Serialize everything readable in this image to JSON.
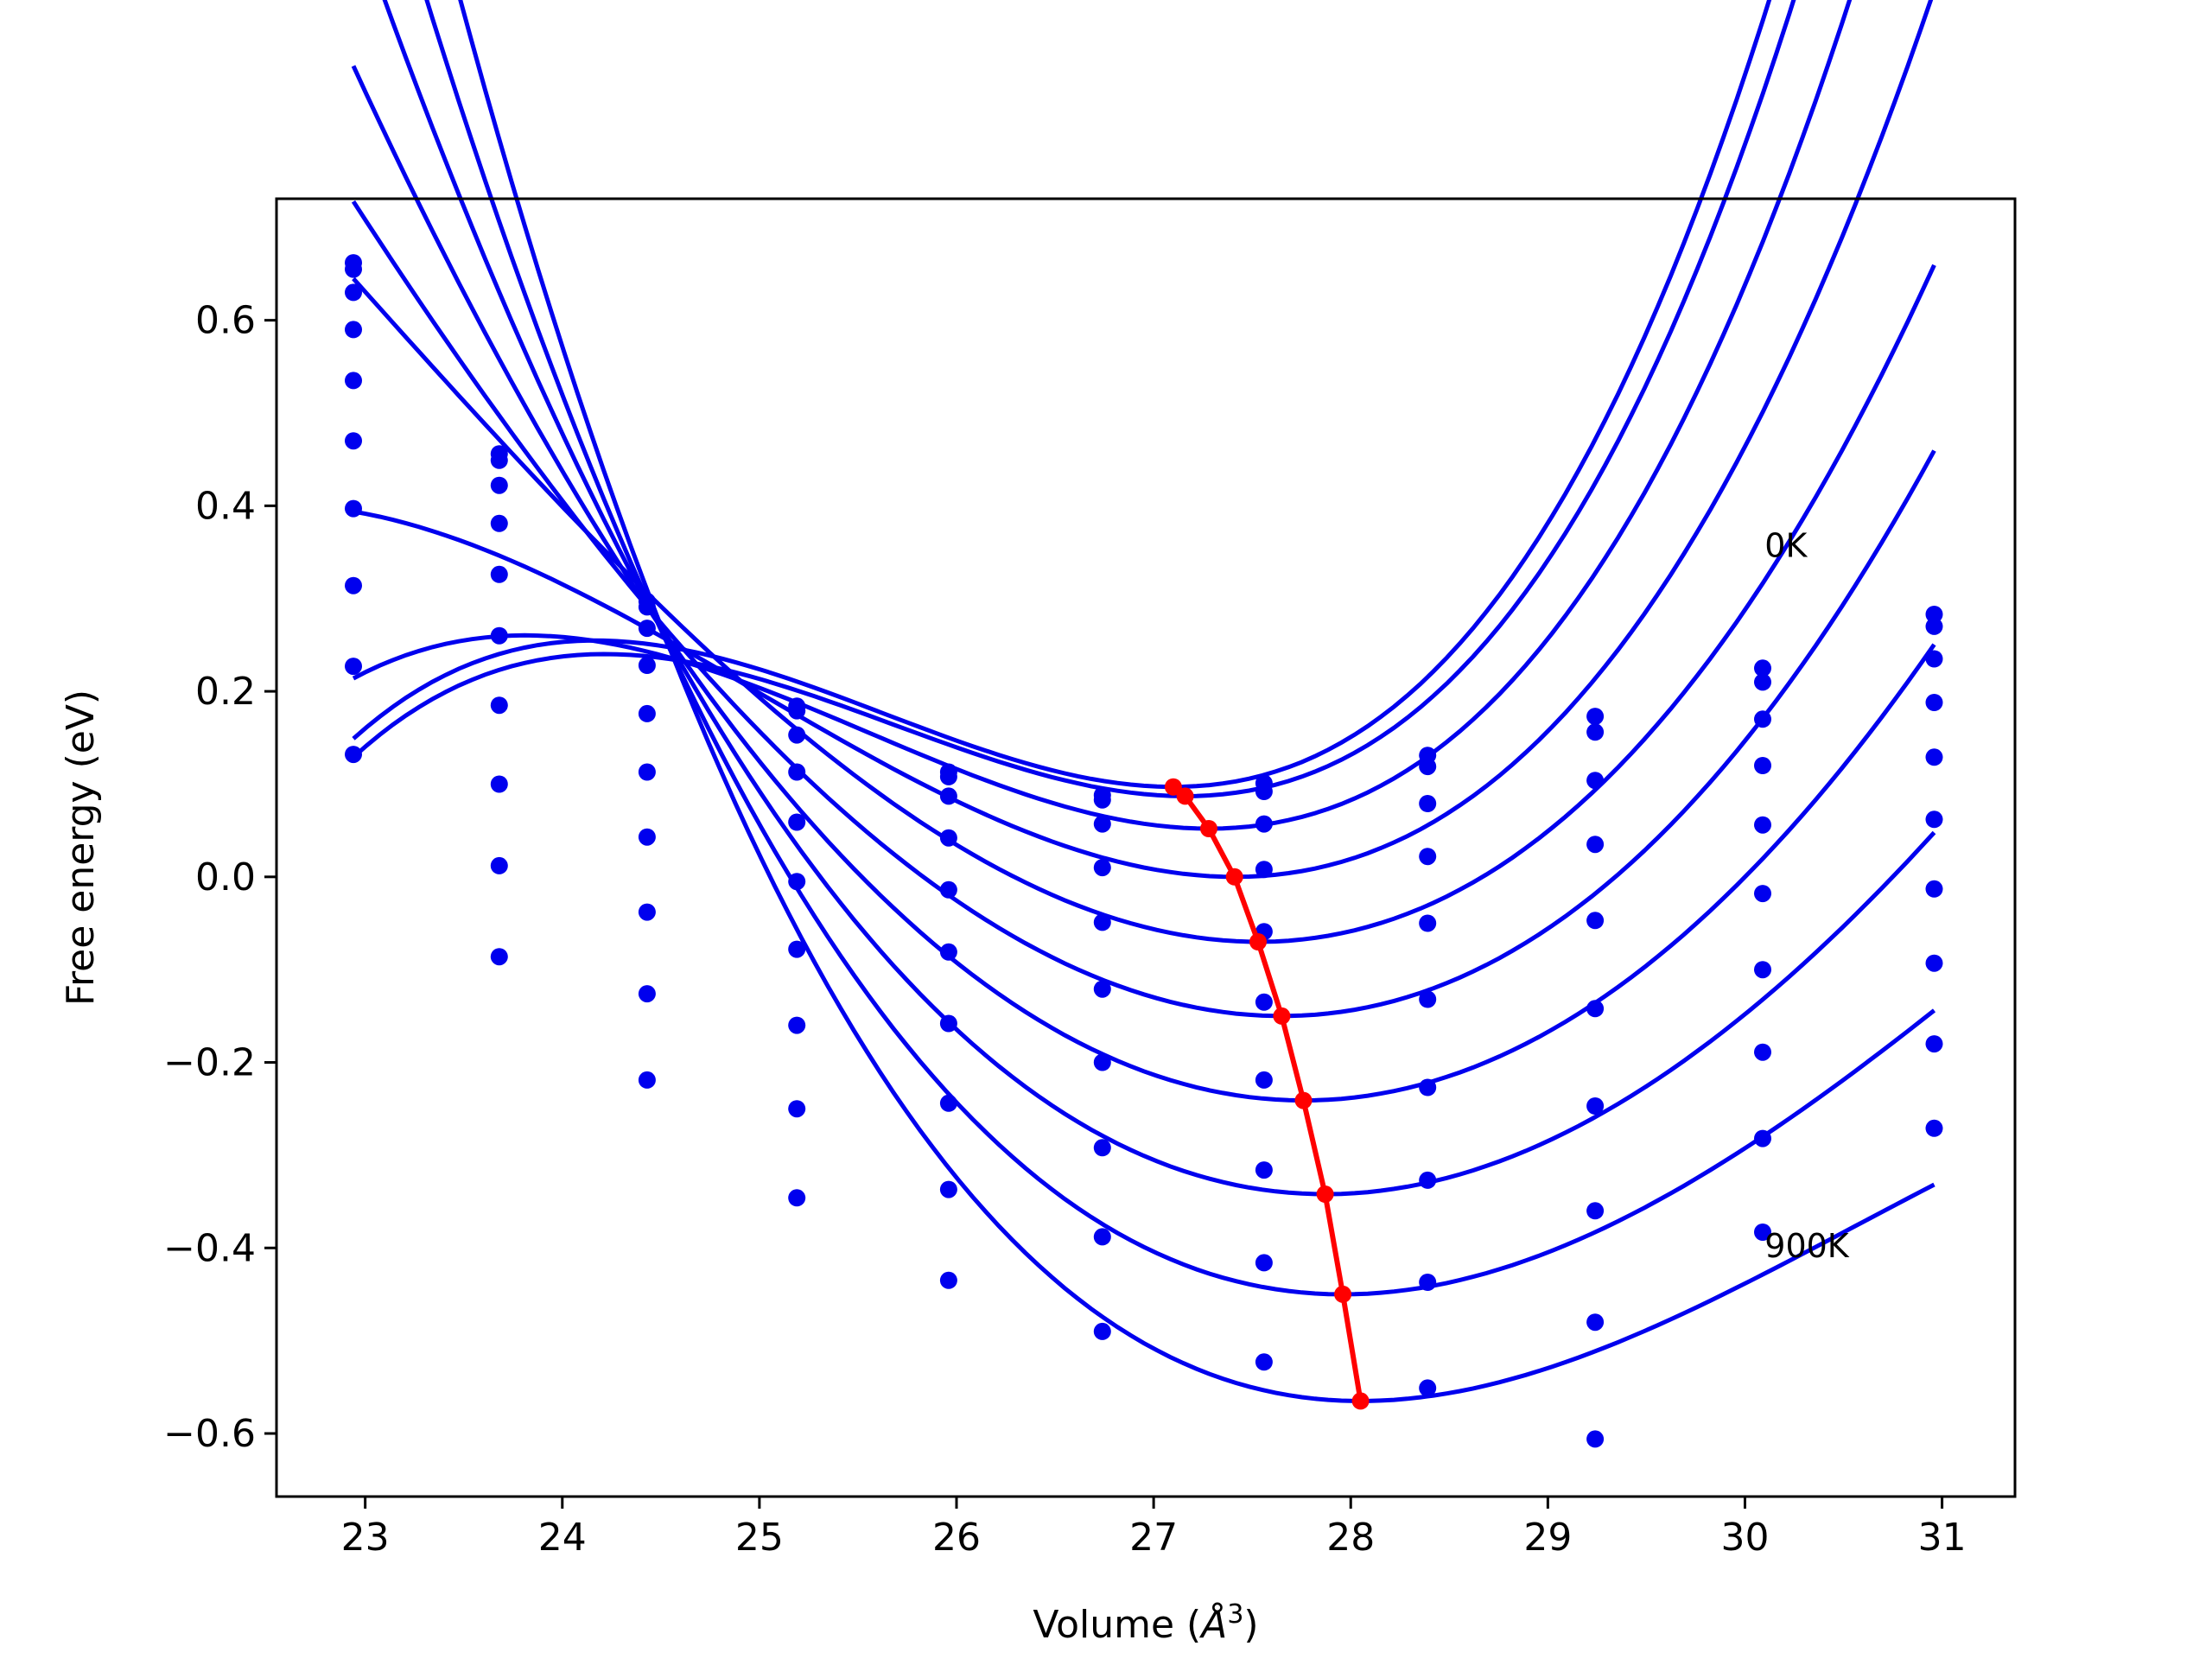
{
  "chart_data": {
    "type": "line",
    "title": "",
    "xlabel_main": "Volume (",
    "xlabel_symbol": "Å",
    "xlabel_exp": "3",
    "xlabel_close": ")",
    "xlabel": "Volume (Å^3)",
    "ylabel": "Free energy (eV)",
    "xlim": [
      22.55,
      31.37
    ],
    "ylim": [
      -0.668,
      0.731
    ],
    "xticks": [
      23,
      24,
      25,
      26,
      27,
      28,
      29,
      30,
      31
    ],
    "xtick_labels": [
      "23",
      "24",
      "25",
      "26",
      "27",
      "28",
      "29",
      "30",
      "31"
    ],
    "yticks": [
      -0.6,
      -0.4,
      -0.2,
      0.0,
      0.2,
      0.4,
      0.6
    ],
    "ytick_labels": [
      "−0.6",
      "−0.4",
      "−0.2",
      "0.0",
      "0.2",
      "0.4",
      "0.6"
    ],
    "grid": false,
    "legend": "none",
    "colors": {
      "fit": "#0000ee",
      "points": "#0000ee",
      "minimum": "#ff0000",
      "frame": "#000000"
    },
    "annotations": [
      {
        "text": "0K",
        "x": 30.1,
        "y": 0.345
      },
      {
        "text": "900K",
        "x": 30.1,
        "y": -0.41
      }
    ],
    "volumes": [
      22.94,
      23.68,
      24.43,
      25.19,
      25.96,
      26.74,
      27.56,
      28.39,
      29.24,
      30.09,
      30.96
    ],
    "series": [
      {
        "points": [
          0.662,
          0.456,
          0.297,
          0.184,
          0.113,
          0.088,
          0.101,
          0.131,
          0.173,
          0.225,
          0.283
        ],
        "fit": {
          "v0": 27.1,
          "e0": 0.097,
          "a": 0.055,
          "b": 0.0125
        }
      },
      {
        "points": [
          0.655,
          0.449,
          0.291,
          0.179,
          0.108,
          0.083,
          0.092,
          0.119,
          0.156,
          0.21,
          0.27
        ],
        "fit": {
          "v0": 27.16,
          "e0": 0.087,
          "a": 0.053,
          "b": 0.012
        }
      },
      {
        "points": [
          0.63,
          0.422,
          0.268,
          0.153,
          0.087,
          0.057,
          0.057,
          0.079,
          0.104,
          0.17,
          0.235
        ],
        "fit": {
          "v0": 27.28,
          "e0": 0.052,
          "a": 0.052,
          "b": 0.01
        }
      },
      {
        "points": [
          0.59,
          0.381,
          0.228,
          0.113,
          0.042,
          0.01,
          0.008,
          0.022,
          0.035,
          0.12,
          0.188
        ],
        "fit": {
          "v0": 27.41,
          "e0": 0.0,
          "a": 0.051,
          "b": 0.007
        }
      },
      {
        "points": [
          0.535,
          0.326,
          0.176,
          0.059,
          -0.014,
          -0.049,
          -0.059,
          -0.05,
          -0.047,
          0.056,
          0.129
        ],
        "fit": {
          "v0": 27.53,
          "e0": -0.07,
          "a": 0.05,
          "b": 0.0035
        }
      },
      {
        "points": [
          0.47,
          0.26,
          0.113,
          -0.005,
          -0.081,
          -0.121,
          -0.135,
          -0.132,
          -0.142,
          -0.018,
          0.062
        ],
        "fit": {
          "v0": 27.65,
          "e0": -0.15,
          "a": 0.049,
          "b": 0.002
        }
      },
      {
        "points": [
          0.397,
          0.185,
          0.043,
          -0.078,
          -0.158,
          -0.2,
          -0.219,
          -0.227,
          -0.247,
          -0.1,
          -0.013
        ],
        "fit": {
          "v0": 27.76,
          "e0": -0.241,
          "a": 0.048,
          "b": 0.0
        }
      },
      {
        "points": [
          0.314,
          0.1,
          -0.038,
          -0.16,
          -0.244,
          -0.292,
          -0.316,
          -0.327,
          -0.36,
          -0.189,
          -0.093
        ],
        "fit": {
          "v0": 27.87,
          "e0": -0.342,
          "a": 0.047,
          "b": -0.002
        }
      },
      {
        "points": [
          0.227,
          0.012,
          -0.126,
          -0.25,
          -0.337,
          -0.388,
          -0.416,
          -0.437,
          -0.48,
          -0.282,
          -0.18
        ],
        "fit": {
          "v0": 27.96,
          "e0": -0.45,
          "a": 0.046,
          "b": -0.004
        }
      },
      {
        "points": [
          0.132,
          -0.086,
          -0.219,
          -0.346,
          -0.435,
          -0.49,
          -0.523,
          -0.551,
          -0.606,
          -0.383,
          -0.271
        ],
        "fit": {
          "v0": 28.05,
          "e0": -0.565,
          "a": 0.045,
          "b": -0.006
        }
      }
    ],
    "minima_path": {
      "x": [
        27.1,
        27.16,
        27.28,
        27.41,
        27.53,
        27.65,
        27.76,
        27.87,
        27.96,
        28.05
      ],
      "y": [
        0.097,
        0.087,
        0.052,
        0.0,
        -0.07,
        -0.15,
        -0.241,
        -0.342,
        -0.45,
        -0.565
      ]
    }
  }
}
